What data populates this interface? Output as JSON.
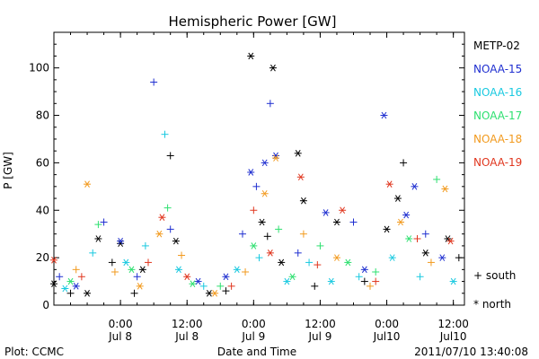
{
  "chart_data": {
    "type": "scatter",
    "title": "Hemispheric Power [GW]",
    "xlabel": "Date and Time",
    "ylabel": "P [GW]",
    "ylim": [
      0,
      115
    ],
    "xlim": [
      "2011-07-07T12:00",
      "2011-07-10T14:00"
    ],
    "yticks": [
      0,
      20,
      40,
      60,
      80,
      100
    ],
    "xticks": [
      {
        "x": "2011-07-08T00:00",
        "line1": "0:00",
        "line2": "Jul 8"
      },
      {
        "x": "2011-07-08T12:00",
        "line1": "12:00",
        "line2": "Jul 8"
      },
      {
        "x": "2011-07-09T00:00",
        "line1": "0:00",
        "line2": "Jul 9"
      },
      {
        "x": "2011-07-09T12:00",
        "line1": "12:00",
        "line2": "Jul 9"
      },
      {
        "x": "2011-07-10T00:00",
        "line1": "0:00",
        "line2": "Jul10"
      },
      {
        "x": "2011-07-10T12:00",
        "line1": "12:00",
        "line2": "Jul10"
      }
    ],
    "grid": false,
    "legend_position": "right",
    "marker_legend": {
      "south": "+ south",
      "north": "* north"
    },
    "series": [
      {
        "name": "METP-02",
        "color": "#000000",
        "points": [
          {
            "x": "2011-07-07T12:00",
            "y": 9,
            "h": "north"
          },
          {
            "x": "2011-07-07T15:00",
            "y": 5,
            "h": "south"
          },
          {
            "x": "2011-07-07T18:00",
            "y": 5,
            "h": "north"
          },
          {
            "x": "2011-07-07T20:00",
            "y": 28,
            "h": "north"
          },
          {
            "x": "2011-07-07T22:30",
            "y": 18,
            "h": "south"
          },
          {
            "x": "2011-07-08T00:00",
            "y": 26,
            "h": "north"
          },
          {
            "x": "2011-07-08T02:30",
            "y": 5,
            "h": "south"
          },
          {
            "x": "2011-07-08T04:00",
            "y": 15,
            "h": "north"
          },
          {
            "x": "2011-07-08T09:00",
            "y": 63,
            "h": "south"
          },
          {
            "x": "2011-07-08T10:00",
            "y": 27,
            "h": "north"
          },
          {
            "x": "2011-07-08T16:00",
            "y": 5,
            "h": "north"
          },
          {
            "x": "2011-07-08T19:00",
            "y": 6,
            "h": "south"
          },
          {
            "x": "2011-07-08T23:30",
            "y": 105,
            "h": "north"
          },
          {
            "x": "2011-07-09T01:30",
            "y": 35,
            "h": "north"
          },
          {
            "x": "2011-07-09T02:30",
            "y": 29,
            "h": "south"
          },
          {
            "x": "2011-07-09T03:30",
            "y": 100,
            "h": "north"
          },
          {
            "x": "2011-07-09T05:00",
            "y": 18,
            "h": "north"
          },
          {
            "x": "2011-07-09T08:00",
            "y": 64,
            "h": "north"
          },
          {
            "x": "2011-07-09T09:00",
            "y": 44,
            "h": "north"
          },
          {
            "x": "2011-07-09T11:00",
            "y": 8,
            "h": "south"
          },
          {
            "x": "2011-07-09T15:00",
            "y": 35,
            "h": "north"
          },
          {
            "x": "2011-07-09T20:00",
            "y": 10,
            "h": "south"
          },
          {
            "x": "2011-07-10T00:00",
            "y": 32,
            "h": "north"
          },
          {
            "x": "2011-07-10T02:00",
            "y": 45,
            "h": "north"
          },
          {
            "x": "2011-07-10T03:00",
            "y": 60,
            "h": "south"
          },
          {
            "x": "2011-07-10T07:00",
            "y": 22,
            "h": "north"
          },
          {
            "x": "2011-07-10T11:00",
            "y": 28,
            "h": "north"
          },
          {
            "x": "2011-07-10T13:00",
            "y": 20,
            "h": "south"
          }
        ]
      },
      {
        "name": "NOAA-15",
        "color": "#1f2fd0",
        "points": [
          {
            "x": "2011-07-07T13:00",
            "y": 12,
            "h": "south"
          },
          {
            "x": "2011-07-07T16:00",
            "y": 8,
            "h": "north"
          },
          {
            "x": "2011-07-07T21:00",
            "y": 35,
            "h": "south"
          },
          {
            "x": "2011-07-08T00:00",
            "y": 27,
            "h": "north"
          },
          {
            "x": "2011-07-08T03:00",
            "y": 12,
            "h": "south"
          },
          {
            "x": "2011-07-08T06:00",
            "y": 94,
            "h": "south"
          },
          {
            "x": "2011-07-08T09:00",
            "y": 32,
            "h": "south"
          },
          {
            "x": "2011-07-08T14:00",
            "y": 10,
            "h": "north"
          },
          {
            "x": "2011-07-08T19:00",
            "y": 12,
            "h": "north"
          },
          {
            "x": "2011-07-08T22:00",
            "y": 30,
            "h": "south"
          },
          {
            "x": "2011-07-08T23:30",
            "y": 56,
            "h": "north"
          },
          {
            "x": "2011-07-09T00:30",
            "y": 50,
            "h": "south"
          },
          {
            "x": "2011-07-09T02:00",
            "y": 60,
            "h": "north"
          },
          {
            "x": "2011-07-09T03:00",
            "y": 85,
            "h": "south"
          },
          {
            "x": "2011-07-09T04:00",
            "y": 63,
            "h": "north"
          },
          {
            "x": "2011-07-09T08:00",
            "y": 22,
            "h": "south"
          },
          {
            "x": "2011-07-09T13:00",
            "y": 39,
            "h": "north"
          },
          {
            "x": "2011-07-09T18:00",
            "y": 35,
            "h": "south"
          },
          {
            "x": "2011-07-09T20:00",
            "y": 15,
            "h": "north"
          },
          {
            "x": "2011-07-09T23:30",
            "y": 80,
            "h": "north"
          },
          {
            "x": "2011-07-10T03:30",
            "y": 38,
            "h": "north"
          },
          {
            "x": "2011-07-10T05:00",
            "y": 50,
            "h": "north"
          },
          {
            "x": "2011-07-10T07:00",
            "y": 30,
            "h": "south"
          },
          {
            "x": "2011-07-10T10:00",
            "y": 20,
            "h": "north"
          }
        ]
      },
      {
        "name": "NOAA-16",
        "color": "#19c9e0",
        "points": [
          {
            "x": "2011-07-07T14:00",
            "y": 7,
            "h": "north"
          },
          {
            "x": "2011-07-07T19:00",
            "y": 22,
            "h": "south"
          },
          {
            "x": "2011-07-08T01:00",
            "y": 18,
            "h": "north"
          },
          {
            "x": "2011-07-08T04:30",
            "y": 25,
            "h": "south"
          },
          {
            "x": "2011-07-08T08:00",
            "y": 72,
            "h": "south"
          },
          {
            "x": "2011-07-08T10:30",
            "y": 15,
            "h": "north"
          },
          {
            "x": "2011-07-08T15:00",
            "y": 8,
            "h": "south"
          },
          {
            "x": "2011-07-08T21:00",
            "y": 15,
            "h": "north"
          },
          {
            "x": "2011-07-09T01:00",
            "y": 20,
            "h": "south"
          },
          {
            "x": "2011-07-09T06:00",
            "y": 10,
            "h": "north"
          },
          {
            "x": "2011-07-09T10:00",
            "y": 18,
            "h": "south"
          },
          {
            "x": "2011-07-09T14:00",
            "y": 10,
            "h": "north"
          },
          {
            "x": "2011-07-09T19:00",
            "y": 12,
            "h": "south"
          },
          {
            "x": "2011-07-10T01:00",
            "y": 20,
            "h": "north"
          },
          {
            "x": "2011-07-10T06:00",
            "y": 12,
            "h": "south"
          },
          {
            "x": "2011-07-10T12:00",
            "y": 10,
            "h": "north"
          }
        ]
      },
      {
        "name": "NOAA-17",
        "color": "#2ee070",
        "points": [
          {
            "x": "2011-07-07T15:00",
            "y": 10,
            "h": "north"
          },
          {
            "x": "2011-07-07T20:00",
            "y": 34,
            "h": "south"
          },
          {
            "x": "2011-07-08T02:00",
            "y": 15,
            "h": "north"
          },
          {
            "x": "2011-07-08T08:30",
            "y": 41,
            "h": "south"
          },
          {
            "x": "2011-07-08T13:00",
            "y": 9,
            "h": "north"
          },
          {
            "x": "2011-07-08T18:00",
            "y": 8,
            "h": "south"
          },
          {
            "x": "2011-07-09T00:00",
            "y": 25,
            "h": "north"
          },
          {
            "x": "2011-07-09T04:30",
            "y": 32,
            "h": "south"
          },
          {
            "x": "2011-07-09T07:00",
            "y": 12,
            "h": "north"
          },
          {
            "x": "2011-07-09T12:00",
            "y": 25,
            "h": "south"
          },
          {
            "x": "2011-07-09T17:00",
            "y": 18,
            "h": "north"
          },
          {
            "x": "2011-07-09T22:00",
            "y": 14,
            "h": "south"
          },
          {
            "x": "2011-07-10T04:00",
            "y": 28,
            "h": "north"
          },
          {
            "x": "2011-07-10T09:00",
            "y": 53,
            "h": "south"
          }
        ]
      },
      {
        "name": "NOAA-18",
        "color": "#f29a1e",
        "points": [
          {
            "x": "2011-07-07T16:00",
            "y": 15,
            "h": "south"
          },
          {
            "x": "2011-07-07T18:00",
            "y": 51,
            "h": "north"
          },
          {
            "x": "2011-07-07T23:00",
            "y": 14,
            "h": "south"
          },
          {
            "x": "2011-07-08T03:30",
            "y": 8,
            "h": "north"
          },
          {
            "x": "2011-07-08T07:00",
            "y": 30,
            "h": "north"
          },
          {
            "x": "2011-07-08T11:00",
            "y": 21,
            "h": "south"
          },
          {
            "x": "2011-07-08T17:00",
            "y": 5,
            "h": "north"
          },
          {
            "x": "2011-07-08T22:30",
            "y": 14,
            "h": "south"
          },
          {
            "x": "2011-07-09T02:00",
            "y": 47,
            "h": "north"
          },
          {
            "x": "2011-07-09T04:00",
            "y": 62,
            "h": "north"
          },
          {
            "x": "2011-07-09T09:00",
            "y": 30,
            "h": "south"
          },
          {
            "x": "2011-07-09T15:00",
            "y": 20,
            "h": "north"
          },
          {
            "x": "2011-07-09T21:00",
            "y": 8,
            "h": "south"
          },
          {
            "x": "2011-07-10T02:30",
            "y": 35,
            "h": "north"
          },
          {
            "x": "2011-07-10T08:00",
            "y": 18,
            "h": "south"
          },
          {
            "x": "2011-07-10T10:30",
            "y": 49,
            "h": "north"
          }
        ]
      },
      {
        "name": "NOAA-19",
        "color": "#e0361e",
        "points": [
          {
            "x": "2011-07-07T12:00",
            "y": 19,
            "h": "north"
          },
          {
            "x": "2011-07-07T17:00",
            "y": 12,
            "h": "south"
          },
          {
            "x": "2011-07-08T05:00",
            "y": 18,
            "h": "south"
          },
          {
            "x": "2011-07-08T07:30",
            "y": 37,
            "h": "north"
          },
          {
            "x": "2011-07-08T12:00",
            "y": 12,
            "h": "north"
          },
          {
            "x": "2011-07-08T20:00",
            "y": 8,
            "h": "south"
          },
          {
            "x": "2011-07-09T00:00",
            "y": 40,
            "h": "south"
          },
          {
            "x": "2011-07-09T03:00",
            "y": 22,
            "h": "north"
          },
          {
            "x": "2011-07-09T08:30",
            "y": 54,
            "h": "north"
          },
          {
            "x": "2011-07-09T11:30",
            "y": 17,
            "h": "south"
          },
          {
            "x": "2011-07-09T16:00",
            "y": 40,
            "h": "north"
          },
          {
            "x": "2011-07-09T22:00",
            "y": 10,
            "h": "south"
          },
          {
            "x": "2011-07-10T00:30",
            "y": 51,
            "h": "north"
          },
          {
            "x": "2011-07-10T05:30",
            "y": 28,
            "h": "south"
          },
          {
            "x": "2011-07-10T11:30",
            "y": 27,
            "h": "north"
          }
        ]
      }
    ]
  },
  "footer": {
    "plot_credit": "Plot: CCMC",
    "timestamp": "2011/07/10 13:40:08"
  }
}
